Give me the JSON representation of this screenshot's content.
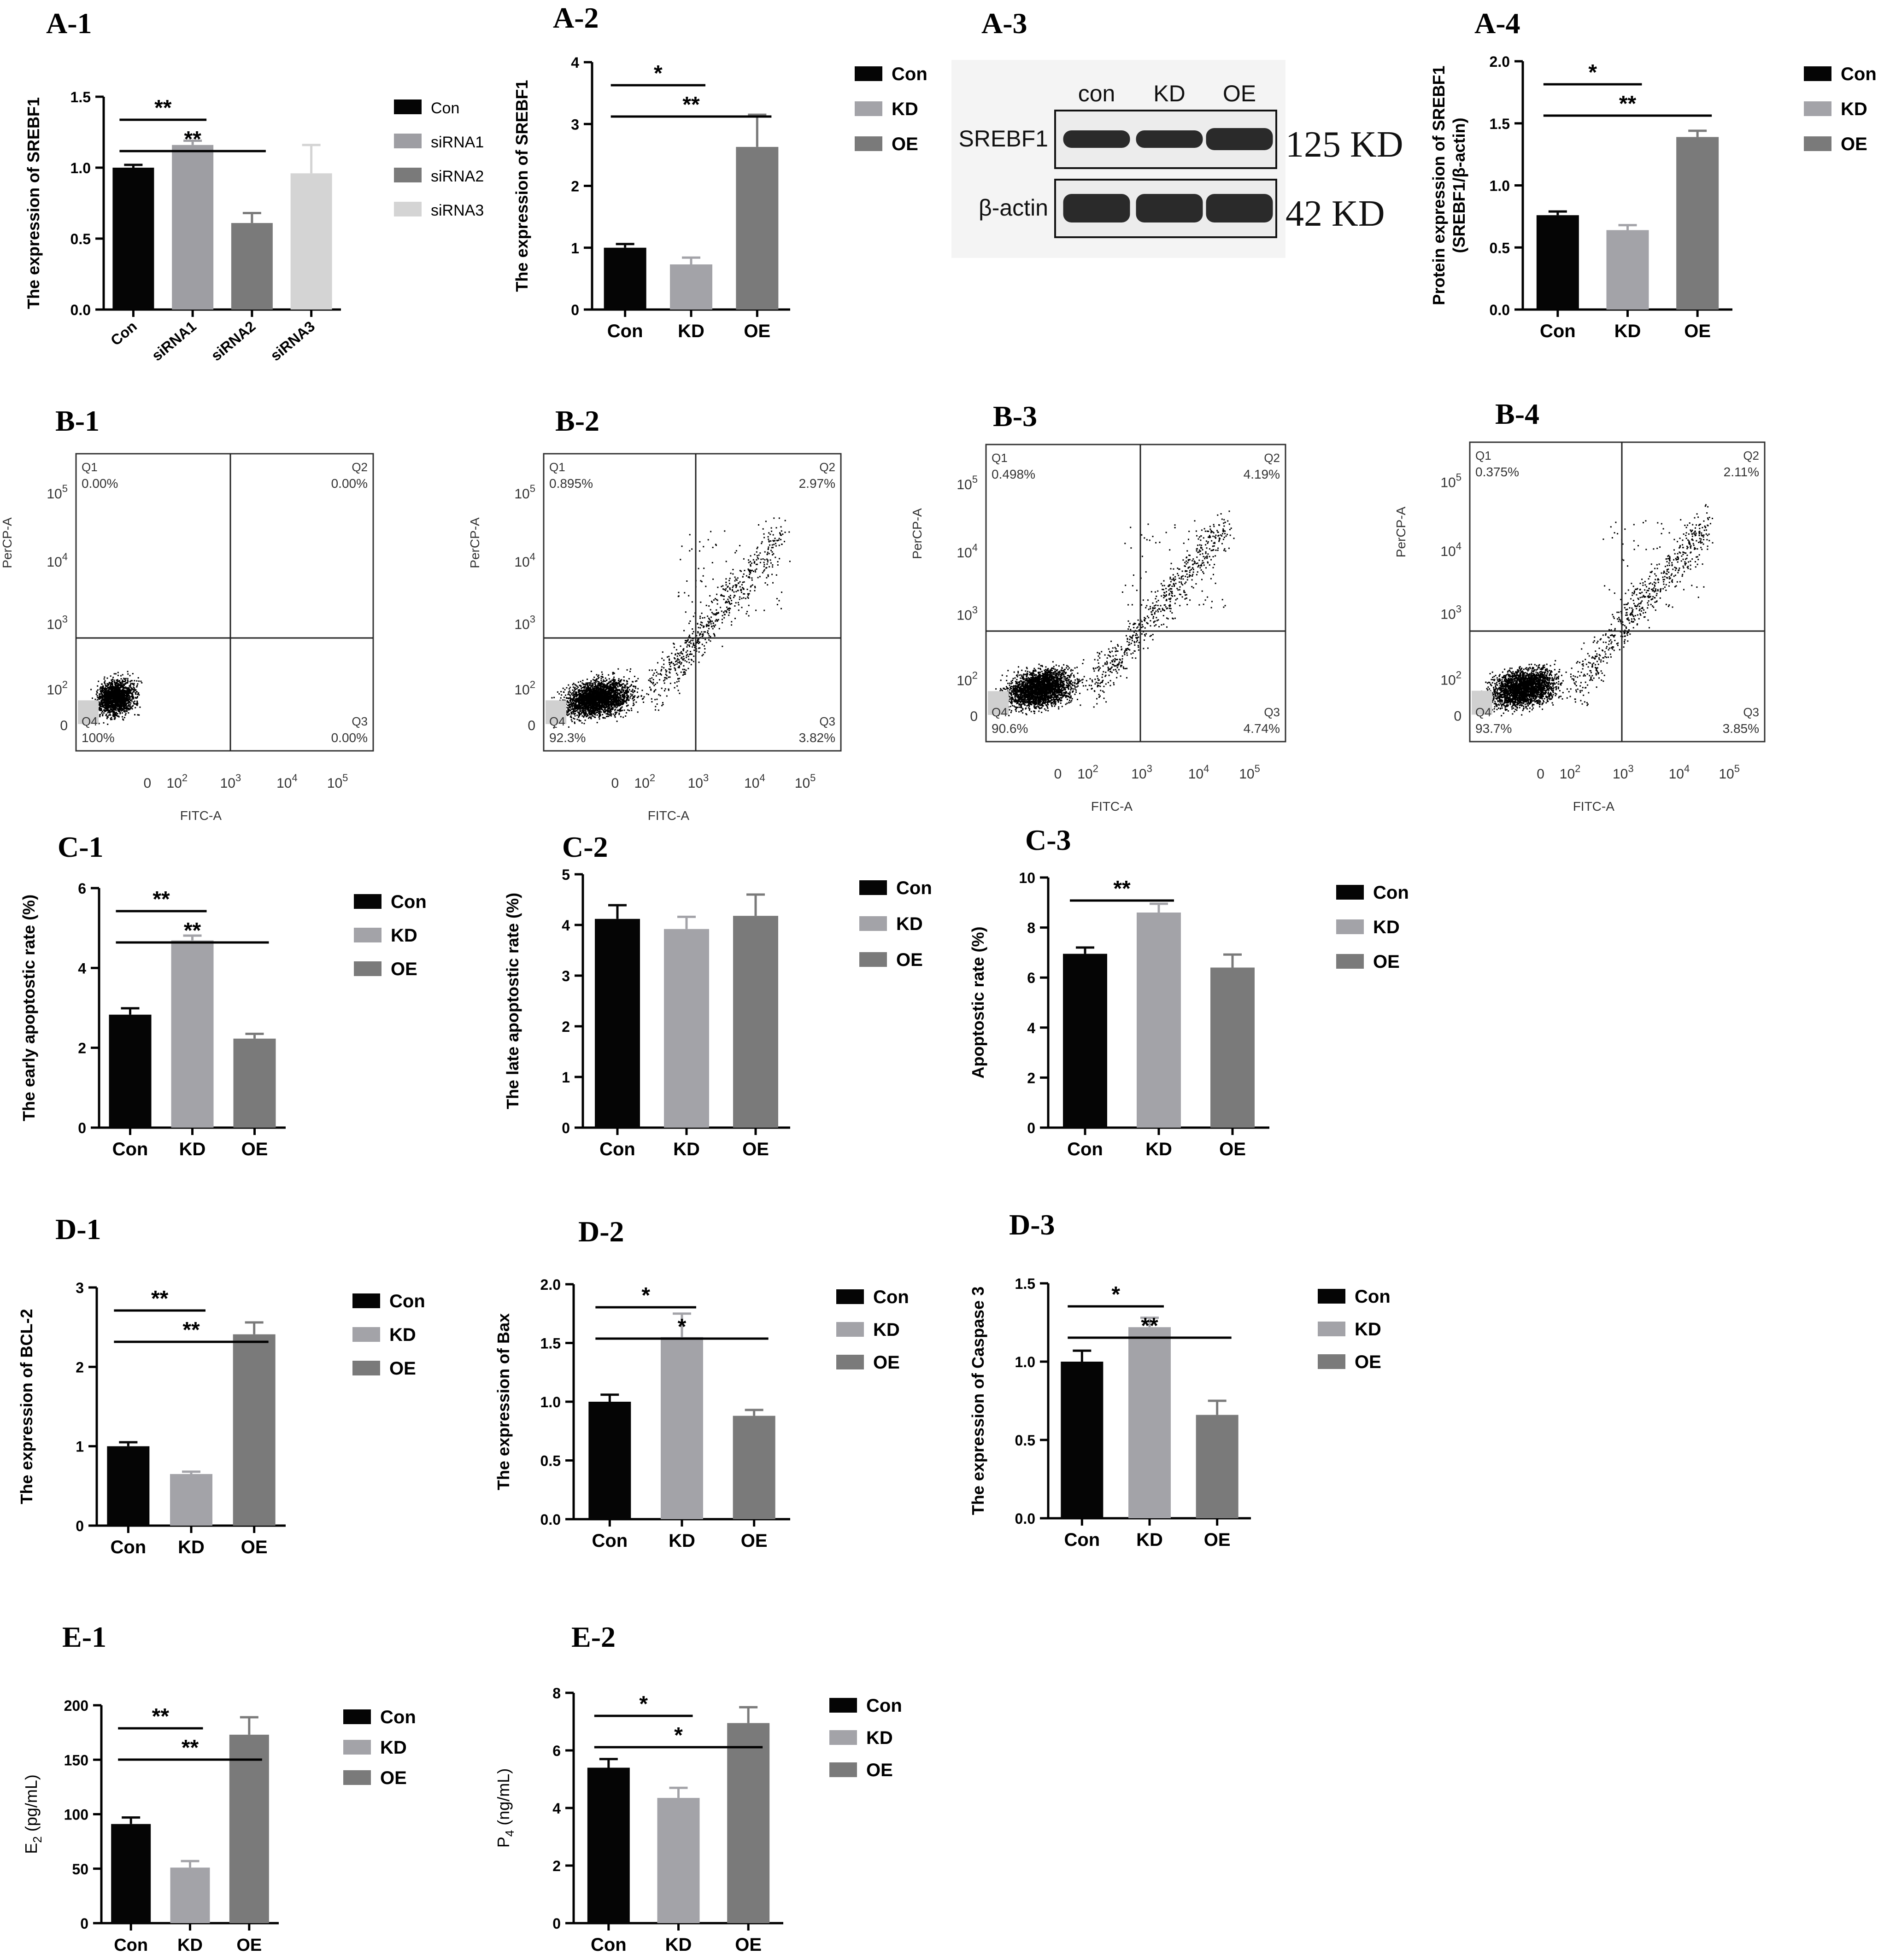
{
  "figure": {
    "panel_labels": [
      "A-1",
      "A-2",
      "A-3",
      "A-4",
      "B-1",
      "B-2",
      "B-3",
      "B-4",
      "C-1",
      "C-2",
      "C-3",
      "D-1",
      "D-2",
      "D-3",
      "E-1",
      "E-2"
    ],
    "group_colors": {
      "Con": "#050505",
      "KD": "#a3a3a8",
      "OE": "#7a7a7a",
      "siRNA1": "#9e9ea3",
      "siRNA2": "#7a7a7a",
      "siRNA3": "#d4d4d4"
    }
  },
  "chart_data": [
    {
      "id": "A-1",
      "type": "bar",
      "categories": [
        "Con",
        "siRNA1",
        "siRNA2",
        "siRNA3"
      ],
      "values": [
        1.0,
        1.16,
        0.61,
        0.96
      ],
      "errors": [
        0.02,
        0.03,
        0.07,
        0.2
      ],
      "ylabel": "The expression of SREBF1",
      "ylim": [
        0,
        1.5
      ],
      "yticks": [
        "0.0",
        "0.5",
        "1.0",
        "1.5"
      ],
      "legend": [
        "Con",
        "siRNA1",
        "siRNA2",
        "siRNA3"
      ],
      "significance": [
        {
          "from": 0,
          "to": 1,
          "label": "**"
        },
        {
          "from": 0,
          "to": 2,
          "label": "**"
        }
      ]
    },
    {
      "id": "A-2",
      "type": "bar",
      "categories": [
        "Con",
        "KD",
        "OE"
      ],
      "values": [
        1.0,
        0.73,
        2.63
      ],
      "errors": [
        0.06,
        0.11,
        0.52
      ],
      "ylabel": "The expression of SREBF1",
      "ylim": [
        0,
        4
      ],
      "yticks": [
        "0",
        "1",
        "2",
        "3",
        "4"
      ],
      "legend": [
        "Con",
        "KD",
        "OE"
      ],
      "significance": [
        {
          "from": 0,
          "to": 1,
          "label": "*"
        },
        {
          "from": 0,
          "to": 2,
          "label": "**"
        }
      ]
    },
    {
      "id": "A-4",
      "type": "bar",
      "categories": [
        "Con",
        "KD",
        "OE"
      ],
      "values": [
        0.76,
        0.64,
        1.39
      ],
      "errors": [
        0.03,
        0.04,
        0.05
      ],
      "ylabel": "Protein expression of SREBF1",
      "ylabel2": "(SREBF1/β-actin)",
      "ylim": [
        0,
        2.0
      ],
      "yticks": [
        "0.0",
        "0.5",
        "1.0",
        "1.5",
        "2.0"
      ],
      "legend": [
        "Con",
        "KD",
        "OE"
      ],
      "significance": [
        {
          "from": 0,
          "to": 1,
          "label": "*"
        },
        {
          "from": 0,
          "to": 2,
          "label": "**"
        }
      ]
    },
    {
      "id": "C-1",
      "type": "bar",
      "categories": [
        "Con",
        "KD",
        "OE"
      ],
      "values": [
        2.83,
        4.69,
        2.23
      ],
      "errors": [
        0.16,
        0.12,
        0.12
      ],
      "ylabel": "The early apoptostic rate (%)",
      "ylim": [
        0,
        6
      ],
      "yticks": [
        "0",
        "2",
        "4",
        "6"
      ],
      "legend": [
        "Con",
        "KD",
        "OE"
      ],
      "significance": [
        {
          "from": 0,
          "to": 1,
          "label": "**"
        },
        {
          "from": 0,
          "to": 2,
          "label": "**"
        }
      ]
    },
    {
      "id": "C-2",
      "type": "bar",
      "categories": [
        "Con",
        "KD",
        "OE"
      ],
      "values": [
        4.12,
        3.92,
        4.18
      ],
      "errors": [
        0.27,
        0.24,
        0.42
      ],
      "ylabel": "The late apoptostic rate (%)",
      "ylim": [
        0,
        5
      ],
      "yticks": [
        "0",
        "1",
        "2",
        "3",
        "4",
        "5"
      ],
      "legend": [
        "Con",
        "KD",
        "OE"
      ],
      "significance": []
    },
    {
      "id": "C-3",
      "type": "bar",
      "categories": [
        "Con",
        "KD",
        "OE"
      ],
      "values": [
        6.95,
        8.6,
        6.4
      ],
      "errors": [
        0.25,
        0.35,
        0.52
      ],
      "ylabel": "Apoptostic rate (%)",
      "ylim": [
        0,
        10
      ],
      "yticks": [
        "0",
        "2",
        "4",
        "6",
        "8",
        "10"
      ],
      "legend": [
        "Con",
        "KD",
        "OE"
      ],
      "significance": [
        {
          "from": 0,
          "to": 1,
          "label": "**"
        }
      ]
    },
    {
      "id": "D-1",
      "type": "bar",
      "categories": [
        "Con",
        "KD",
        "OE"
      ],
      "values": [
        1.0,
        0.65,
        2.41
      ],
      "errors": [
        0.05,
        0.03,
        0.15
      ],
      "ylabel": "The expression of BCL-2",
      "ylim": [
        0,
        3
      ],
      "yticks": [
        "0",
        "1",
        "2",
        "3"
      ],
      "legend": [
        "Con",
        "KD",
        "OE"
      ],
      "significance": [
        {
          "from": 0,
          "to": 1,
          "label": "**"
        },
        {
          "from": 0,
          "to": 2,
          "label": "**"
        }
      ]
    },
    {
      "id": "D-2",
      "type": "bar",
      "categories": [
        "Con",
        "KD",
        "OE"
      ],
      "values": [
        1.0,
        1.55,
        0.88
      ],
      "errors": [
        0.06,
        0.2,
        0.05
      ],
      "ylabel": "The expression of Bax",
      "ylim": [
        0,
        2.0
      ],
      "yticks": [
        "0.0",
        "0.5",
        "1.0",
        "1.5",
        "2.0"
      ],
      "legend": [
        "Con",
        "KD",
        "OE"
      ],
      "significance": [
        {
          "from": 0,
          "to": 1,
          "label": "*"
        },
        {
          "from": 0,
          "to": 2,
          "label": "*"
        }
      ]
    },
    {
      "id": "D-3",
      "type": "bar",
      "categories": [
        "Con",
        "KD",
        "OE"
      ],
      "values": [
        1.0,
        1.22,
        0.66
      ],
      "errors": [
        0.07,
        0.06,
        0.09
      ],
      "ylabel": "The expression of Caspase 3",
      "ylim": [
        0,
        1.5
      ],
      "yticks": [
        "0.0",
        "0.5",
        "1.0",
        "1.5"
      ],
      "legend": [
        "Con",
        "KD",
        "OE"
      ],
      "significance": [
        {
          "from": 0,
          "to": 1,
          "label": "*"
        },
        {
          "from": 0,
          "to": 2,
          "label": "**"
        }
      ]
    },
    {
      "id": "E-1",
      "type": "bar",
      "categories": [
        "Con",
        "KD",
        "OE"
      ],
      "values": [
        91,
        51,
        173
      ],
      "errors": [
        6,
        6,
        16
      ],
      "ylabel": "E2 (pg/mL)",
      "ylabel_main": "E",
      "ylabel_sub": "2",
      "ylabel_rest": " (pg/mL)",
      "ylim": [
        0,
        200
      ],
      "yticks": [
        "0",
        "50",
        "100",
        "150",
        "200"
      ],
      "legend": [
        "Con",
        "KD",
        "OE"
      ],
      "significance": [
        {
          "from": 0,
          "to": 1,
          "label": "**"
        },
        {
          "from": 0,
          "to": 2,
          "label": "**"
        }
      ]
    },
    {
      "id": "E-2",
      "type": "bar",
      "categories": [
        "Con",
        "KD",
        "OE"
      ],
      "values": [
        5.4,
        4.35,
        6.95
      ],
      "errors": [
        0.3,
        0.35,
        0.55
      ],
      "ylabel": "P4 (ng/mL)",
      "ylabel_main": "P",
      "ylabel_sub": "4",
      "ylabel_rest": " (ng/mL)",
      "ylim": [
        0,
        8
      ],
      "yticks": [
        "0",
        "2",
        "4",
        "6",
        "8"
      ],
      "legend": [
        "Con",
        "KD",
        "OE"
      ],
      "significance": [
        {
          "from": 0,
          "to": 1,
          "label": "*"
        },
        {
          "from": 0,
          "to": 2,
          "label": "*"
        }
      ]
    },
    {
      "id": "B-1",
      "type": "scatter",
      "xlabel": "FITC-A",
      "ylabel": "PerCP-A",
      "xticks": [
        "0",
        "10^2",
        "10^3",
        "10^4",
        "10^5"
      ],
      "yticks": [
        "0",
        "10^2",
        "10^3",
        "10^4",
        "10^5"
      ],
      "quadrants": [
        {
          "name": "Q1",
          "value": "0.00%"
        },
        {
          "name": "Q2",
          "value": "0.00%"
        },
        {
          "name": "Q3",
          "value": "0.00%"
        },
        {
          "name": "Q4",
          "value": "100%"
        }
      ]
    },
    {
      "id": "B-2",
      "type": "scatter",
      "xlabel": "FITC-A",
      "ylabel": "PerCP-A",
      "xticks": [
        "0",
        "10^2",
        "10^3",
        "10^4",
        "10^5"
      ],
      "yticks": [
        "0",
        "10^2",
        "10^3",
        "10^4",
        "10^5"
      ],
      "quadrants": [
        {
          "name": "Q1",
          "value": "0.895%"
        },
        {
          "name": "Q2",
          "value": "2.97%"
        },
        {
          "name": "Q3",
          "value": "3.82%"
        },
        {
          "name": "Q4",
          "value": "92.3%"
        }
      ]
    },
    {
      "id": "B-3",
      "type": "scatter",
      "xlabel": "FITC-A",
      "ylabel": "PerCP-A",
      "xticks": [
        "0",
        "10^2",
        "10^3",
        "10^4",
        "10^5"
      ],
      "yticks": [
        "0",
        "10^2",
        "10^3",
        "10^4",
        "10^5"
      ],
      "quadrants": [
        {
          "name": "Q1",
          "value": "0.498%"
        },
        {
          "name": "Q2",
          "value": "4.19%"
        },
        {
          "name": "Q3",
          "value": "4.74%"
        },
        {
          "name": "Q4",
          "value": "90.6%"
        }
      ]
    },
    {
      "id": "B-4",
      "type": "scatter",
      "xlabel": "FITC-A",
      "ylabel": "PerCP-A",
      "xticks": [
        "0",
        "10^2",
        "10^3",
        "10^4",
        "10^5"
      ],
      "yticks": [
        "0",
        "10^2",
        "10^3",
        "10^4",
        "10^5"
      ],
      "quadrants": [
        {
          "name": "Q1",
          "value": "0.375%"
        },
        {
          "name": "Q2",
          "value": "2.11%"
        },
        {
          "name": "Q3",
          "value": "3.85%"
        },
        {
          "name": "Q4",
          "value": "93.7%"
        }
      ]
    }
  ],
  "western_blot": {
    "id": "A-3",
    "lane_labels": [
      "con",
      "KD",
      "OE"
    ],
    "rows": [
      {
        "protein": "SREBF1",
        "size": "125 KD"
      },
      {
        "protein": "β-actin",
        "size": "42 KD"
      }
    ]
  }
}
